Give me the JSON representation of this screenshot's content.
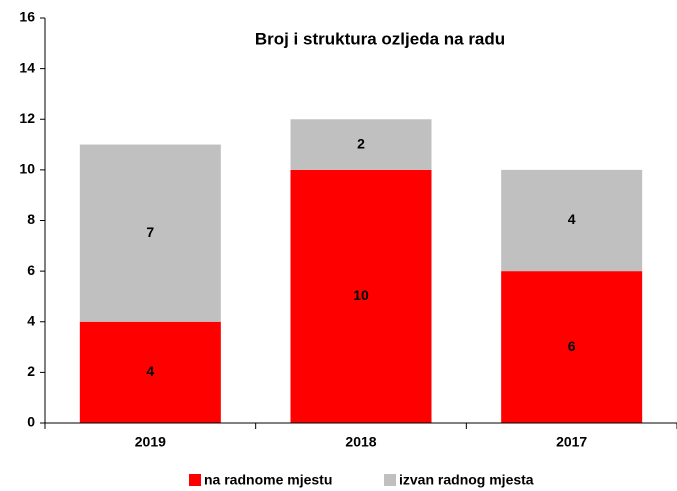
{
  "chart_data": {
    "type": "stacked_bar",
    "title": "Broj i struktura ozljeda na radu",
    "categories": [
      "2019",
      "2018",
      "2017"
    ],
    "series": [
      {
        "name": "na radnome mjestu",
        "color": "#ff0000",
        "values": [
          4,
          10,
          6
        ]
      },
      {
        "name": "izvan radnog mjesta",
        "color": "#c0c0c0",
        "values": [
          7,
          2,
          4
        ]
      }
    ],
    "ylim": [
      0,
      16
    ],
    "yticks": [
      0,
      2,
      4,
      6,
      8,
      10,
      12,
      14,
      16
    ],
    "legend": "bottom"
  }
}
